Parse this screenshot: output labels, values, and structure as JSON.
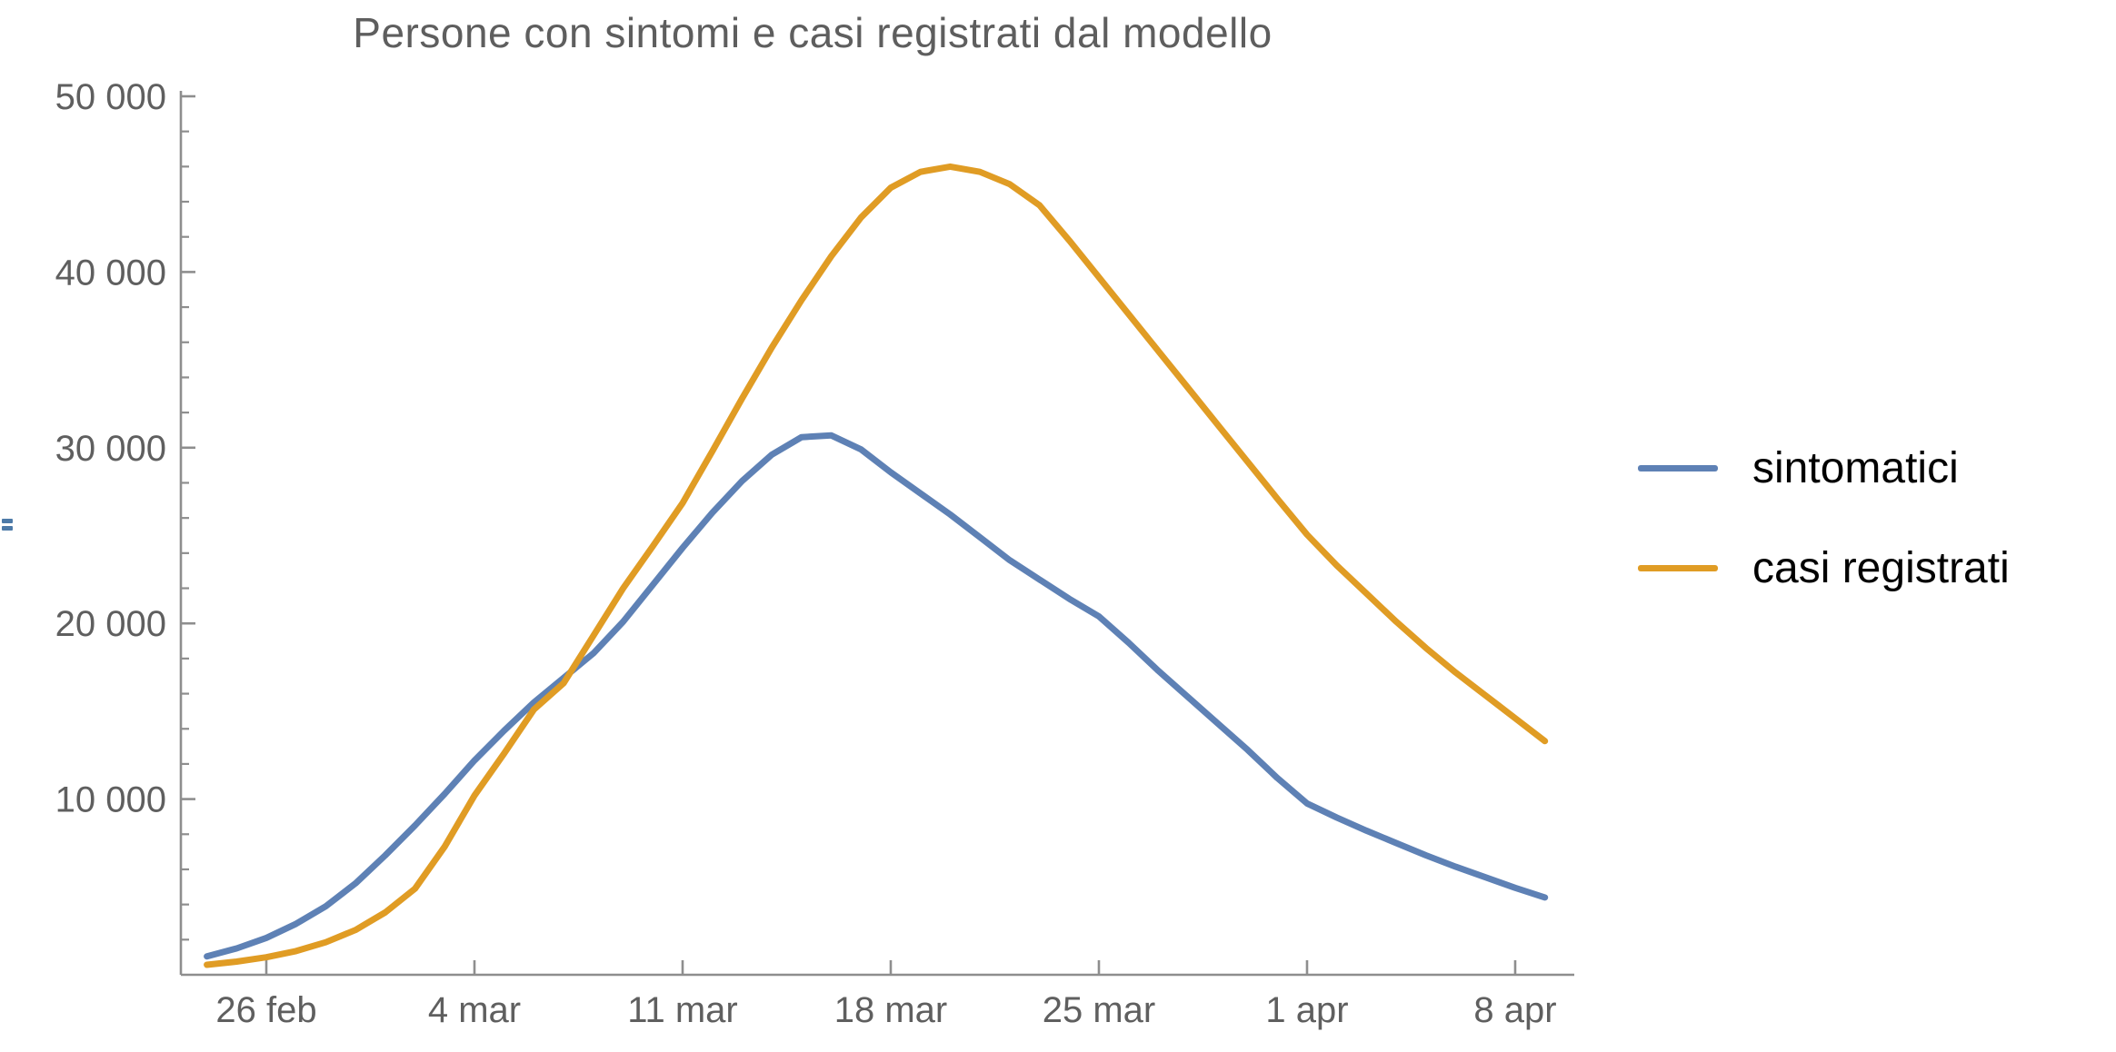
{
  "title": "Persone con sintomi e casi registrati dal modello",
  "colors": {
    "sintomatici": "#5E81B5",
    "casi_registrati": "#E09C24",
    "axis": "#8e8e8e",
    "tick_label": "#5f5f5f",
    "title_text": "#5e5e5e",
    "legend_text": "#000000",
    "edge_marker": "#4d7aa8"
  },
  "legend": {
    "position": "right",
    "items": [
      {
        "label": "sintomatici",
        "color": "#5E81B5"
      },
      {
        "label": "casi registrati",
        "color": "#E09C24"
      }
    ]
  },
  "chart_data": {
    "type": "line",
    "title": "Persone con sintomi e casi registrati dal modello",
    "xlabel": "",
    "ylabel": "",
    "grid": false,
    "legend_position": "right-outside",
    "x_axis": {
      "unit": "date (days relative to 26 feb)",
      "tick_labels": [
        "26 feb",
        "4 mar",
        "11 mar",
        "18 mar",
        "25 mar",
        "1 apr",
        "8 apr"
      ],
      "tick_days": [
        0,
        7,
        14,
        21,
        28,
        35,
        42
      ],
      "range_days": [
        -2.9,
        45
      ]
    },
    "y_axis": {
      "tick_labels": [
        "10 000",
        "20 000",
        "30 000",
        "40 000",
        "50 000"
      ],
      "tick_values": [
        10000,
        20000,
        30000,
        40000,
        50000
      ],
      "minor_tick_step": 2000,
      "range": [
        0,
        50000
      ]
    },
    "x_days": [
      -2,
      -1,
      0,
      1,
      2,
      3,
      4,
      5,
      6,
      7,
      8,
      9,
      10,
      11,
      12,
      13,
      14,
      15,
      16,
      17,
      18,
      19,
      20,
      21,
      22,
      23,
      24,
      25,
      26,
      27,
      28,
      29,
      30,
      31,
      32,
      33,
      34,
      35,
      36,
      37,
      38,
      39,
      40,
      41,
      42,
      43
    ],
    "series": [
      {
        "name": "sintomatici",
        "color": "#5E81B5",
        "peak": {
          "date": "16 mar",
          "value": 30700
        },
        "values": [
          1050,
          1500,
          2100,
          2900,
          3900,
          5200,
          6800,
          8500,
          10300,
          12200,
          13900,
          15500,
          16900,
          18300,
          20100,
          22200,
          24300,
          26300,
          28100,
          29600,
          30600,
          30700,
          29900,
          28600,
          27400,
          26200,
          24900,
          23600,
          22500,
          21400,
          20400,
          18900,
          17300,
          15800,
          14300,
          12800,
          11200,
          9750,
          8950,
          8200,
          7500,
          6800,
          6150,
          5550,
          4950,
          4400
        ]
      },
      {
        "name": "casi registrati",
        "color": "#E09C24",
        "peak": {
          "date": "20 mar",
          "value": 46000
        },
        "values": [
          570,
          750,
          1000,
          1350,
          1850,
          2550,
          3550,
          4900,
          7300,
          10200,
          12600,
          15100,
          16600,
          19300,
          22000,
          24400,
          26850,
          29800,
          32800,
          35700,
          38400,
          40900,
          43100,
          44800,
          45700,
          46000,
          45700,
          45000,
          43800,
          41800,
          39700,
          37600,
          35500,
          33400,
          31300,
          29200,
          27100,
          25050,
          23300,
          21700,
          20100,
          18600,
          17200,
          15900,
          14600,
          13300
        ]
      }
    ]
  }
}
